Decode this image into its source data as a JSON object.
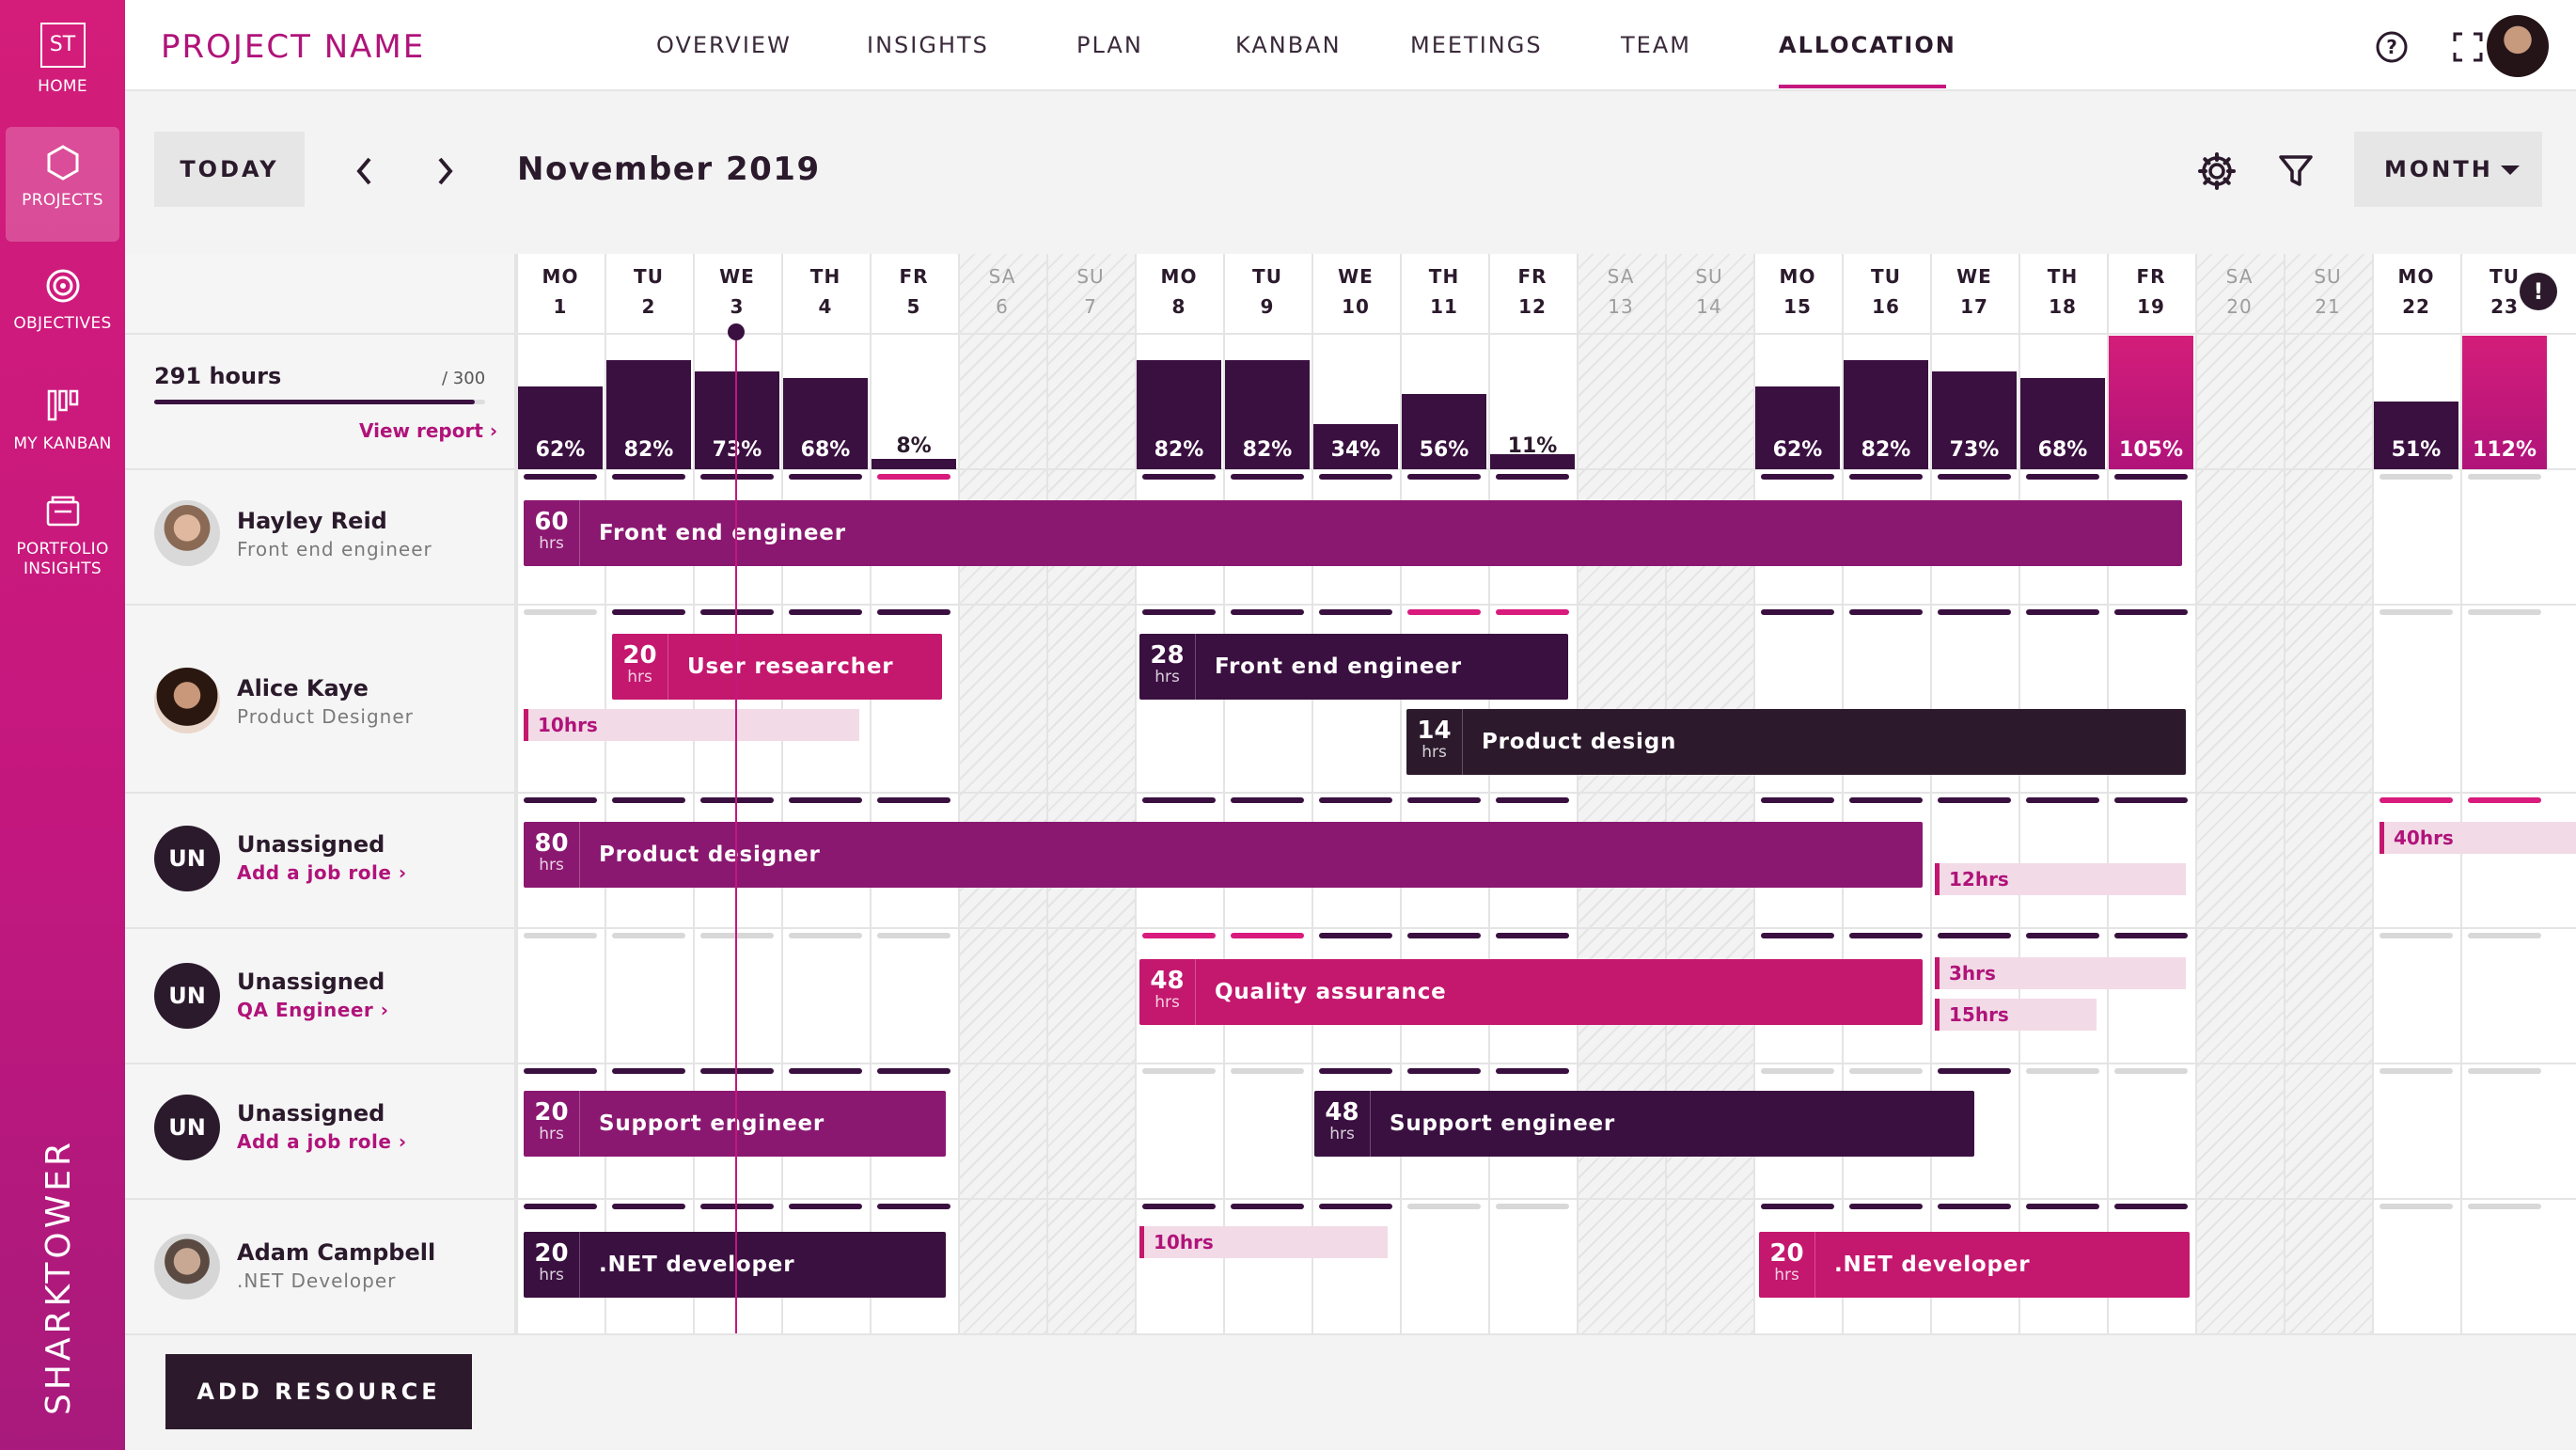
{
  "sidebar": {
    "logo_text": "ST",
    "items": [
      {
        "label": "HOME"
      },
      {
        "label": "PROJECTS"
      },
      {
        "label": "OBJECTIVES"
      },
      {
        "label": "MY KANBAN"
      },
      {
        "label": "PORTFOLIO INSIGHTS"
      }
    ],
    "brand": "SHARKTOWER"
  },
  "header": {
    "project_name": "PROJECT NAME",
    "tabs": [
      "OVERVIEW",
      "INSIGHTS",
      "PLAN",
      "KANBAN",
      "MEETINGS",
      "TEAM",
      "ALLOCATION"
    ],
    "active_tab": "ALLOCATION"
  },
  "toolbar": {
    "today_label": "TODAY",
    "month_title": "November 2019",
    "view_label": "MONTH"
  },
  "summary": {
    "hours": "291 hours",
    "capacity": "/ 300",
    "progress_fraction": 0.97,
    "view_report": "View report ›"
  },
  "days": [
    {
      "dow": "MO",
      "d": "1"
    },
    {
      "dow": "TU",
      "d": "2"
    },
    {
      "dow": "WE",
      "d": "3"
    },
    {
      "dow": "TH",
      "d": "4"
    },
    {
      "dow": "FR",
      "d": "5"
    },
    {
      "dow": "SA",
      "d": "6"
    },
    {
      "dow": "SU",
      "d": "7"
    },
    {
      "dow": "MO",
      "d": "8"
    },
    {
      "dow": "TU",
      "d": "9"
    },
    {
      "dow": "WE",
      "d": "10"
    },
    {
      "dow": "TH",
      "d": "11"
    },
    {
      "dow": "FR",
      "d": "12"
    },
    {
      "dow": "SA",
      "d": "13"
    },
    {
      "dow": "SU",
      "d": "14"
    },
    {
      "dow": "MO",
      "d": "15"
    },
    {
      "dow": "TU",
      "d": "16"
    },
    {
      "dow": "WE",
      "d": "17"
    },
    {
      "dow": "TH",
      "d": "18"
    },
    {
      "dow": "FR",
      "d": "19"
    },
    {
      "dow": "SA",
      "d": "20"
    },
    {
      "dow": "SU",
      "d": "21"
    },
    {
      "dow": "MO",
      "d": "22"
    },
    {
      "dow": "TU",
      "d": "23"
    }
  ],
  "utilization": [
    {
      "day": "1",
      "pct": 62,
      "label": "62%"
    },
    {
      "day": "2",
      "pct": 82,
      "label": "82%"
    },
    {
      "day": "3",
      "pct": 73,
      "label": "73%"
    },
    {
      "day": "4",
      "pct": 68,
      "label": "68%"
    },
    {
      "day": "5",
      "pct": 8,
      "label": "8%"
    },
    {
      "day": "8",
      "pct": 82,
      "label": "82%"
    },
    {
      "day": "9",
      "pct": 82,
      "label": "82%"
    },
    {
      "day": "10",
      "pct": 34,
      "label": "34%"
    },
    {
      "day": "11",
      "pct": 56,
      "label": "56%"
    },
    {
      "day": "12",
      "pct": 11,
      "label": "11%"
    },
    {
      "day": "15",
      "pct": 62,
      "label": "62%"
    },
    {
      "day": "16",
      "pct": 82,
      "label": "82%"
    },
    {
      "day": "17",
      "pct": 73,
      "label": "73%"
    },
    {
      "day": "18",
      "pct": 68,
      "label": "68%"
    },
    {
      "day": "19",
      "pct": 105,
      "label": "105%"
    },
    {
      "day": "22",
      "pct": 51,
      "label": "51%"
    },
    {
      "day": "23",
      "pct": 112,
      "label": "112%"
    }
  ],
  "resources": [
    {
      "name": "Hayley Reid",
      "role": "Front end engineer",
      "allocations": [
        {
          "hours": "60",
          "unit": "hrs",
          "title": "Front end engineer"
        }
      ]
    },
    {
      "name": "Alice Kaye",
      "role": "Product Designer",
      "allocations": [
        {
          "hours": "20",
          "unit": "hrs",
          "title": "User researcher"
        },
        {
          "hours": "28",
          "unit": "hrs",
          "title": "Front end engineer"
        },
        {
          "hours": "14",
          "unit": "hrs",
          "title": "Product design"
        }
      ],
      "tentative": [
        "10hrs"
      ]
    },
    {
      "name": "Unassigned",
      "role": "Add a job role ›",
      "initials": "UN",
      "allocations": [
        {
          "hours": "80",
          "unit": "hrs",
          "title": "Product designer"
        }
      ],
      "tentative": [
        "12hrs",
        "40hrs"
      ]
    },
    {
      "name": "Unassigned",
      "role": "QA Engineer ›",
      "initials": "UN",
      "allocations": [
        {
          "hours": "48",
          "unit": "hrs",
          "title": "Quality assurance"
        }
      ],
      "tentative": [
        "3hrs",
        "15hrs"
      ]
    },
    {
      "name": "Unassigned",
      "role": "Add a job role ›",
      "initials": "UN",
      "allocations": [
        {
          "hours": "20",
          "unit": "hrs",
          "title": "Support engineer"
        },
        {
          "hours": "48",
          "unit": "hrs",
          "title": "Support engineer"
        }
      ]
    },
    {
      "name": "Adam Campbell",
      "role": ".NET Developer",
      "allocations": [
        {
          "hours": "20",
          "unit": "hrs",
          "title": ".NET developer"
        },
        {
          "hours": "20",
          "unit": "hrs",
          "title": ".NET developer"
        }
      ],
      "tentative": [
        "10hrs"
      ]
    }
  ],
  "add_resource_label": "ADD RESOURCE",
  "alert_glyph": "!",
  "colors": {
    "accent": "#c4177e",
    "dark": "#3a1040",
    "purple": "#8a1870",
    "pink": "#c4176e"
  }
}
